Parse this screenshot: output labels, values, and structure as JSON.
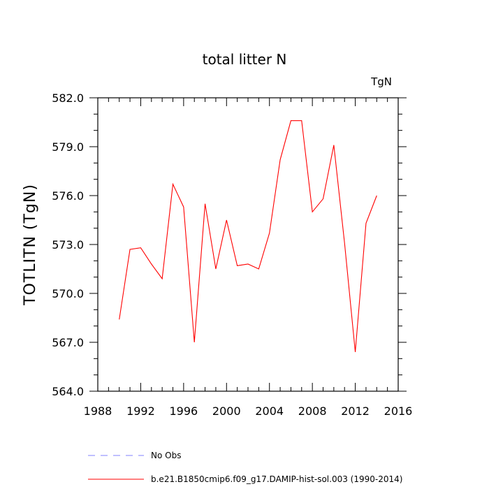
{
  "chart_data": {
    "type": "line",
    "title": "total litter N",
    "units_label": "TgN",
    "ylabel": "TOTLITN  (TgN)",
    "xlabel": "",
    "xlim": [
      1988,
      2016
    ],
    "ylim": [
      564.0,
      582.0
    ],
    "x_ticks": [
      1988,
      1992,
      1996,
      2000,
      2004,
      2008,
      2012,
      2016
    ],
    "x_tick_labels": [
      "1988",
      "1992",
      "1996",
      "2000",
      "2004",
      "2008",
      "2012",
      "2016"
    ],
    "y_ticks": [
      564.0,
      567.0,
      570.0,
      573.0,
      576.0,
      579.0,
      582.0
    ],
    "y_tick_labels": [
      "564.0",
      "567.0",
      "570.0",
      "573.0",
      "576.0",
      "579.0",
      "582.0"
    ],
    "grid": false,
    "legend_position": "bottom",
    "series": [
      {
        "name": "b.e21.B1850cmip6.f09_g17.DAMIP-hist-sol.003 (1990-2014)",
        "color": "#ff0000",
        "style": "solid",
        "x": [
          1990,
          1991,
          1992,
          1993,
          1994,
          1995,
          1996,
          1997,
          1998,
          1999,
          2000,
          2001,
          2002,
          2003,
          2004,
          2005,
          2006,
          2007,
          2008,
          2009,
          2010,
          2011,
          2012,
          2013,
          2014
        ],
        "y": [
          568.4,
          572.7,
          572.8,
          571.8,
          570.9,
          576.7,
          575.3,
          567.0,
          575.5,
          571.5,
          574.5,
          571.7,
          571.8,
          571.5,
          573.7,
          578.2,
          580.6,
          580.6,
          575.0,
          575.8,
          579.1,
          573.1,
          566.4,
          574.3,
          576.0
        ]
      }
    ],
    "legend": [
      {
        "label": "No Obs",
        "color": "#8080ff",
        "style": "dashed"
      },
      {
        "label": "b.e21.B1850cmip6.f09_g17.DAMIP-hist-sol.003 (1990-2014)",
        "color": "#ff0000",
        "style": "solid"
      }
    ]
  }
}
